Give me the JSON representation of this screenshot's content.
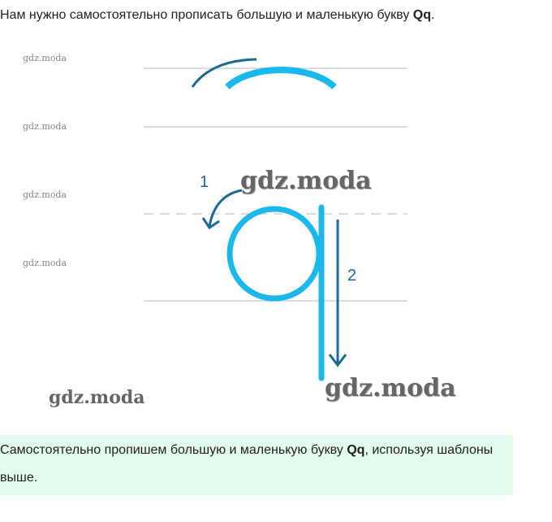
{
  "intro": {
    "text": "Нам нужно самостоятельно прописать большую и маленькую букву ",
    "bold": "Qq",
    "end": "."
  },
  "watermarks": [
    "gdz.moda",
    "gdz.moda",
    "gdz.moda",
    "gdz.moda",
    "gdz.moda",
    "gdz.moda",
    "gdz.moda"
  ],
  "diagram": {
    "step1": "1",
    "step2": "2",
    "stroke_color": "#1ab8ec",
    "arrow_color": "#1a6a96"
  },
  "note": {
    "text": "Самостоятельно пропишем большую и маленькую букву ",
    "bold": "Qq",
    "end": ", используя шаблоны выше."
  }
}
